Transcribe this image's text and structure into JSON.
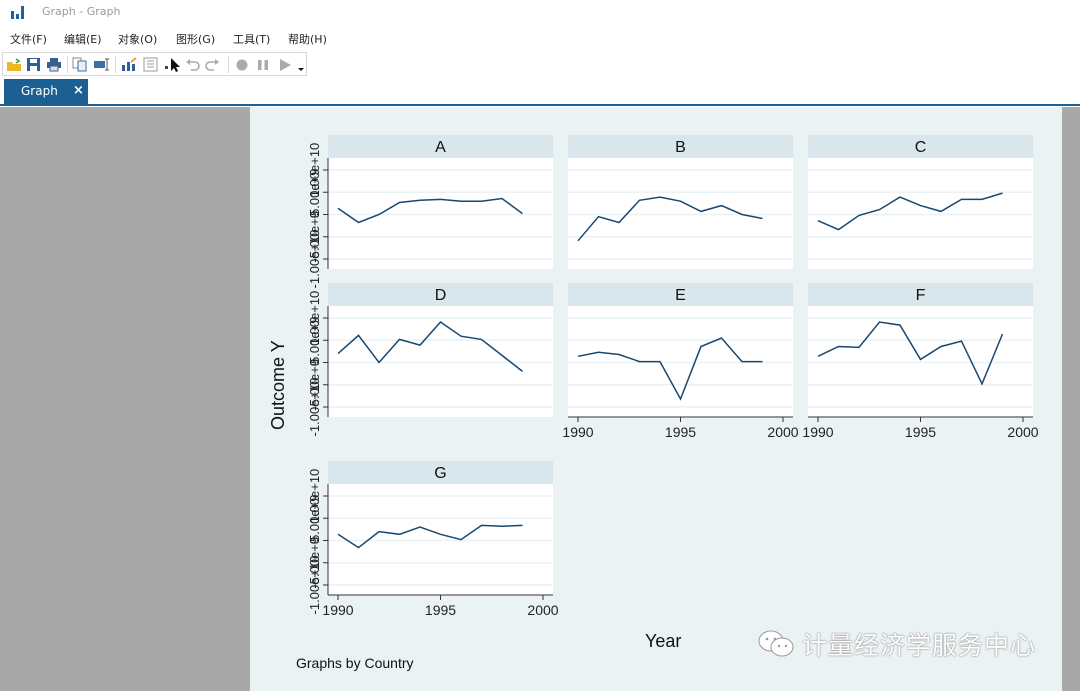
{
  "window": {
    "title": "Graph - Graph"
  },
  "menu": [
    "文件(F)",
    "编辑(E)",
    "对象(O)",
    "图形(G)",
    "工具(T)",
    "帮助(H)"
  ],
  "toolbar": {
    "icons": [
      "open-icon",
      "save-icon",
      "print-icon",
      "copy-icon",
      "rename-icon",
      "graph-editor-icon",
      "data-editor-icon",
      "pointer-icon",
      "undo-icon",
      "redo-icon",
      "record-icon",
      "pause-icon",
      "play-icon",
      "dropdown-icon"
    ]
  },
  "tabs": [
    {
      "label": "Graph",
      "close": "×"
    }
  ],
  "graph": {
    "caption": "Graphs by Country",
    "xlabel": "Year",
    "ylabel": "Outcome Y",
    "watermark": "计量经济学服务中心"
  },
  "chart_data": {
    "type": "line",
    "title": "",
    "xlabel": "Year",
    "ylabel": "Outcome Y",
    "note": "Graphs by Country",
    "x": [
      1990,
      1991,
      1992,
      1993,
      1994,
      1995,
      1996,
      1997,
      1998,
      1999
    ],
    "xticks": [
      "1990",
      "1995",
      "2000"
    ],
    "xlim": [
      1990,
      2000
    ],
    "ylim": [
      -10000000000.0,
      10000000000.0
    ],
    "yticks_note": "Y tick labels overlap and are illegible (range approx -1.00e+10 to 1.00e+10)",
    "yticks": [
      -10000000000.0,
      -5000000000.0,
      0,
      5000000000.0,
      10000000000.0
    ],
    "grid": true,
    "facet_by": "Country",
    "series": [
      {
        "name": "A",
        "values": [
          1400000000.0,
          -1800000000.0,
          0.0,
          2700000000.0,
          3200000000.0,
          3400000000.0,
          3000000000.0,
          3000000000.0,
          3600000000.0,
          200000000.0
        ]
      },
      {
        "name": "B",
        "values": [
          -5900000000.0,
          -500000000.0,
          -1800000000.0,
          3200000000.0,
          3900000000.0,
          3000000000.0,
          700000000.0,
          2000000000.0,
          0.0,
          -900000000.0
        ]
      },
      {
        "name": "C",
        "values": [
          -1400000000.0,
          -3400000000.0,
          -200000000.0,
          1100000000.0,
          3900000000.0,
          2000000000.0,
          700000000.0,
          3400000000.0,
          3400000000.0,
          4800000000.0
        ]
      },
      {
        "name": "D",
        "values": [
          2000000000.0,
          6100000000.0,
          0.0,
          5200000000.0,
          3900000000.0,
          9100000000.0,
          5900000000.0,
          5200000000.0,
          1600000000.0,
          -2000000000.0
        ]
      },
      {
        "name": "E",
        "values": [
          1400000000.0,
          2300000000.0,
          1800000000.0,
          200000000.0,
          200000000.0,
          -8200000000.0,
          3600000000.0,
          5500000000.0,
          200000000.0,
          200000000.0
        ]
      },
      {
        "name": "F",
        "values": [
          1400000000.0,
          3600000000.0,
          3400000000.0,
          9100000000.0,
          8400000000.0,
          700000000.0,
          3600000000.0,
          4800000000.0,
          -4800000000.0,
          6400000000.0
        ]
      },
      {
        "name": "G",
        "values": [
          1400000000.0,
          -1600000000.0,
          2000000000.0,
          1400000000.0,
          3000000000.0,
          1400000000.0,
          200000000.0,
          3400000000.0,
          3200000000.0,
          3400000000.0
        ]
      }
    ],
    "colors": {
      "line": "#1a476f",
      "strip": "#d9e6eb",
      "plot_bg": "#ffffff",
      "grid": "#eaf2f3",
      "graph_bg": "#eaf2f3"
    }
  }
}
